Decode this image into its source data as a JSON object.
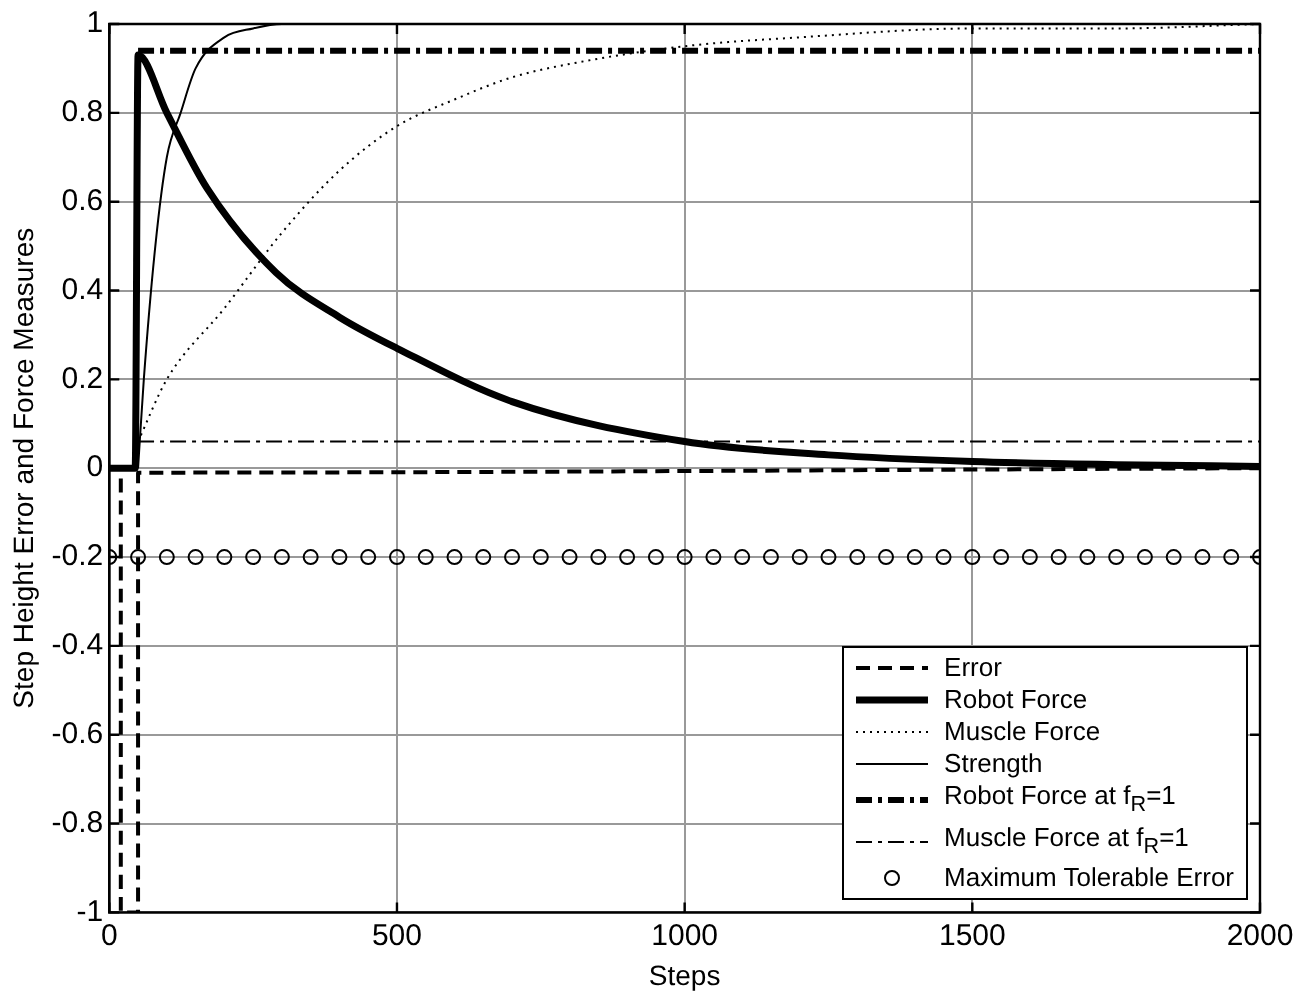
{
  "chart_data": {
    "type": "line",
    "xlabel": "Steps",
    "ylabel": "Step Height Error and Force Measures",
    "xlim": [
      0,
      2000
    ],
    "xticks": [
      0,
      500,
      1000,
      1500,
      2000
    ],
    "ylim": [
      -1,
      1
    ],
    "yticks": [
      -1,
      -0.8,
      -0.6,
      -0.4,
      -0.2,
      0,
      0.2,
      0.4,
      0.6,
      0.8,
      1
    ],
    "grid": true,
    "legend": "bottom right",
    "marker": "none",
    "series": [
      {
        "name": "Error",
        "color": "#000000",
        "line_style": "dashed",
        "x": [
          0,
          20,
          20,
          50,
          50,
          2000
        ],
        "values": [
          0,
          0,
          -1,
          -1,
          -0.01,
          0
        ]
      },
      {
        "name": "Robot Force",
        "color": "#000000",
        "line_style": "solid",
        "x": [
          0,
          45,
          50,
          100,
          170,
          290,
          400,
          500,
          700,
          1000,
          1250,
          1500,
          1750,
          2000
        ],
        "values": [
          0,
          0,
          0.93,
          0.8,
          0.63,
          0.44,
          0.34,
          0.27,
          0.15,
          0.06,
          0.03,
          0.015,
          0.008,
          0.004
        ]
      },
      {
        "name": "Muscle Force",
        "color": "#000000",
        "line_style": "dotted",
        "x": [
          50,
          100,
          200,
          300,
          400,
          500,
          600,
          700,
          800,
          1000,
          1200,
          1500,
          1750,
          2000
        ],
        "values": [
          0.06,
          0.2,
          0.36,
          0.53,
          0.67,
          0.77,
          0.83,
          0.88,
          0.91,
          0.95,
          0.97,
          0.99,
          0.99,
          1
        ]
      },
      {
        "name": "Strength",
        "color": "#000000",
        "line_style": "solid",
        "x": [
          50,
          60,
          80,
          100,
          124,
          150,
          200,
          250,
          300,
          400,
          2000
        ],
        "values": [
          0,
          0.2,
          0.5,
          0.7,
          0.8,
          0.9,
          0.97,
          0.99,
          1,
          1,
          1
        ]
      },
      {
        "name": "Robot Force at f$_{R}$=1",
        "color": "#000000",
        "line_style": "dashdot",
        "x": [
          50,
          2000
        ],
        "values": [
          0.94,
          0.94
        ]
      },
      {
        "name": "Muscle Force at f$_{R}$=1",
        "color": "#000000",
        "line_style": "dashdot",
        "x": [
          50,
          2000
        ],
        "values": [
          0.06,
          0.06
        ]
      },
      {
        "name": "Maximum Tolerable Error",
        "type": "scatter",
        "color": "#000000",
        "marker": "circle",
        "x": [
          0,
          50,
          100,
          150,
          200,
          250,
          300,
          350,
          400,
          450,
          500,
          550,
          600,
          650,
          700,
          750,
          800,
          850,
          900,
          950,
          1000,
          1050,
          1100,
          1150,
          1200,
          1250,
          1300,
          1350,
          1400,
          1450,
          1500,
          1550,
          1600,
          1650,
          1700,
          1750,
          1800,
          1850,
          1900,
          1950,
          2000
        ],
        "values": [
          -0.2,
          -0.2,
          -0.2,
          -0.2,
          -0.2,
          -0.2,
          -0.2,
          -0.2,
          -0.2,
          -0.2,
          -0.2,
          -0.2,
          -0.2,
          -0.2,
          -0.2,
          -0.2,
          -0.2,
          -0.2,
          -0.2,
          -0.2,
          -0.2,
          -0.2,
          -0.2,
          -0.2,
          -0.2,
          -0.2,
          -0.2,
          -0.2,
          -0.2,
          -0.2,
          -0.2,
          -0.2,
          -0.2,
          -0.2,
          -0.2,
          -0.2,
          -0.2,
          -0.2,
          -0.2,
          -0.2,
          -0.2
        ]
      }
    ]
  }
}
